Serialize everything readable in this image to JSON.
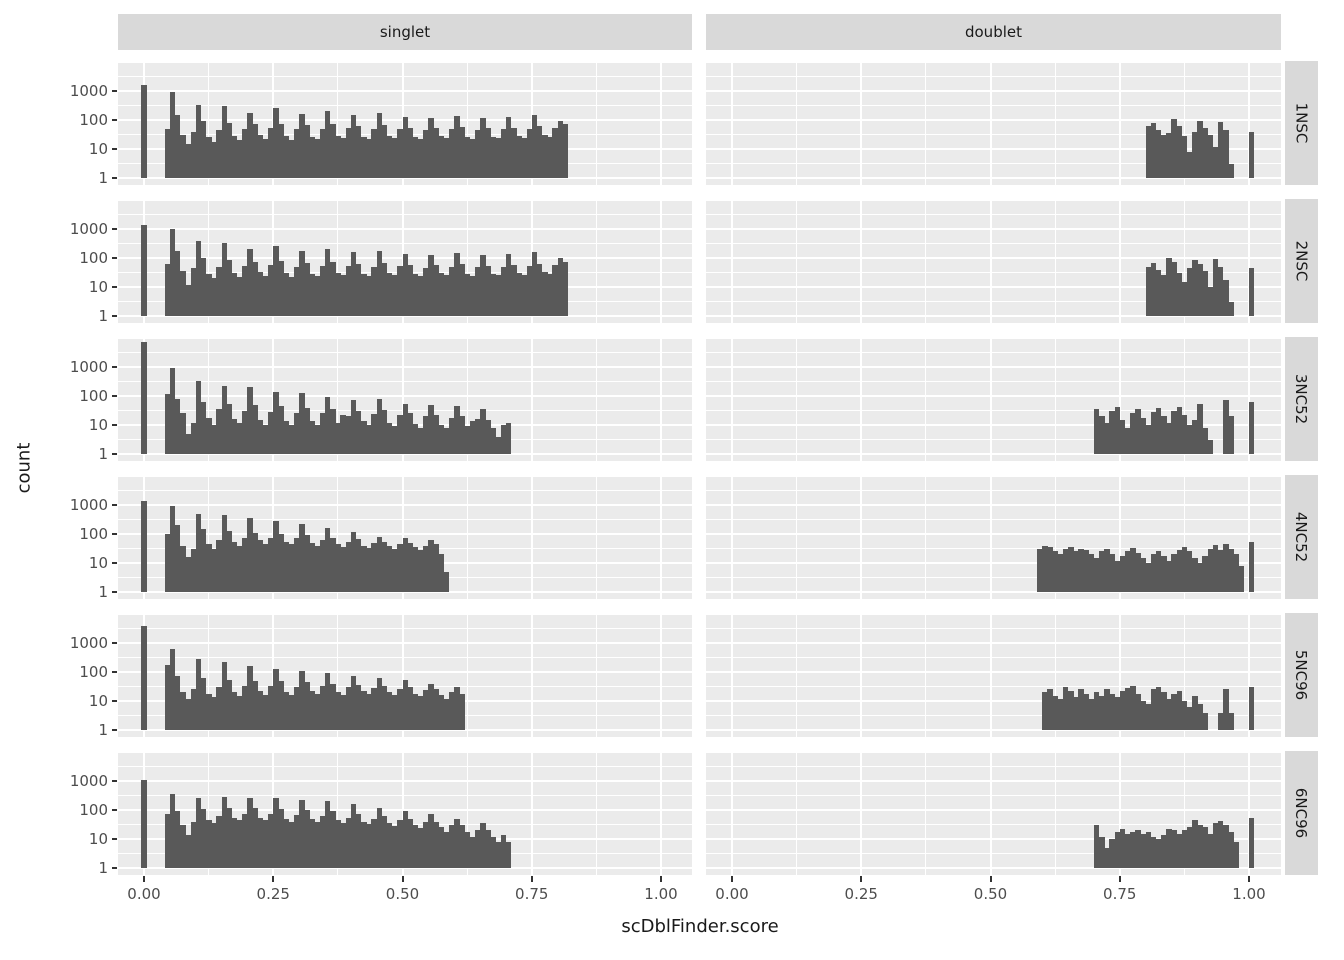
{
  "chart_data": {
    "type": "histogram",
    "title": "",
    "xlabel": "scDblFinder.score",
    "ylabel": "count",
    "x_tick_labels": [
      "0.00",
      "0.25",
      "0.50",
      "0.75",
      "1.00"
    ],
    "x_tick_values": [
      0,
      0.25,
      0.5,
      0.75,
      1.0
    ],
    "y_tick_labels": [
      "1000",
      "100",
      "10",
      "1"
    ],
    "y_tick_values": [
      1000,
      100,
      10,
      1
    ],
    "y_scale": "log10",
    "grid": "on",
    "legend": "none",
    "col_facets": [
      "singlet",
      "doublet"
    ],
    "row_facets": [
      "1NSC",
      "2NSC",
      "3NC52",
      "4NC52",
      "5NC96",
      "6NC96"
    ],
    "binwidth": 0.01,
    "colors": {
      "bar": "#595959",
      "panel_background": "#EBEBEB",
      "strip_background": "#D9D9D9",
      "gridline": "#FFFFFF",
      "tick_text": "#4d4d4d",
      "strip_text": "#1a1a1a",
      "axis_title_text": "#1a1a1a"
    },
    "panels": [
      {
        "row": "1NSC",
        "col": "singlet",
        "zero_spike": 1600,
        "x0": 0.04,
        "counts": [
          50,
          900,
          150,
          30,
          15,
          40,
          320,
          90,
          25,
          18,
          45,
          300,
          80,
          28,
          20,
          50,
          180,
          70,
          30,
          22,
          55,
          250,
          75,
          28,
          20,
          48,
          160,
          65,
          26,
          22,
          50,
          200,
          70,
          28,
          24,
          52,
          150,
          60,
          26,
          22,
          48,
          170,
          65,
          28,
          24,
          50,
          130,
          55,
          26,
          22,
          45,
          120,
          55,
          28,
          24,
          48,
          140,
          58,
          26,
          22,
          46,
          120,
          52,
          26,
          24,
          48,
          130,
          55,
          28,
          24,
          50,
          150,
          60,
          30,
          26,
          55,
          90,
          70
        ]
      },
      {
        "row": "1NSC",
        "col": "doublet",
        "zero_spike": 0,
        "x0": 0.8,
        "counts": [
          60,
          78,
          45,
          30,
          35,
          110,
          62,
          28,
          8,
          40,
          95,
          55,
          30,
          12,
          88,
          45,
          3,
          0,
          0,
          0,
          40
        ]
      },
      {
        "row": "2NSC",
        "col": "singlet",
        "zero_spike": 1400,
        "x0": 0.04,
        "counts": [
          60,
          1000,
          170,
          35,
          12,
          45,
          400,
          100,
          28,
          20,
          50,
          320,
          85,
          30,
          22,
          55,
          200,
          75,
          32,
          24,
          58,
          260,
          80,
          30,
          22,
          50,
          170,
          68,
          28,
          24,
          52,
          210,
          72,
          30,
          26,
          54,
          160,
          62,
          28,
          24,
          50,
          175,
          68,
          30,
          26,
          52,
          140,
          58,
          28,
          24,
          47,
          125,
          57,
          30,
          26,
          50,
          145,
          60,
          28,
          24,
          48,
          125,
          54,
          28,
          26,
          50,
          135,
          57,
          30,
          26,
          52,
          155,
          62,
          32,
          28,
          57,
          100,
          75
        ]
      },
      {
        "row": "2NSC",
        "col": "doublet",
        "zero_spike": 0,
        "x0": 0.8,
        "counts": [
          50,
          65,
          40,
          25,
          100,
          70,
          30,
          15,
          45,
          85,
          60,
          35,
          10,
          95,
          50,
          18,
          3,
          0,
          0,
          0,
          45
        ]
      },
      {
        "row": "3NC52",
        "col": "singlet",
        "zero_spike": 7000,
        "x0": 0.04,
        "counts": [
          120,
          900,
          80,
          25,
          5,
          12,
          330,
          60,
          18,
          10,
          35,
          230,
          55,
          16,
          12,
          30,
          200,
          50,
          15,
          10,
          28,
          140,
          45,
          14,
          10,
          26,
          130,
          40,
          14,
          10,
          25,
          95,
          35,
          12,
          22,
          20,
          70,
          30,
          14,
          10,
          24,
          80,
          32,
          12,
          9,
          22,
          55,
          25,
          11,
          8,
          20,
          48,
          22,
          10,
          8,
          18,
          45,
          20,
          9,
          14,
          16,
          35,
          15,
          8,
          4,
          10,
          12
        ]
      },
      {
        "row": "3NC52",
        "col": "doublet",
        "zero_spike": 0,
        "x0": 0.7,
        "counts": [
          35,
          20,
          12,
          30,
          42,
          15,
          8,
          25,
          35,
          18,
          10,
          28,
          38,
          20,
          12,
          30,
          42,
          22,
          10,
          15,
          55,
          8,
          3,
          0,
          0,
          70,
          20,
          0,
          0,
          0,
          60
        ]
      },
      {
        "row": "4NC52",
        "col": "singlet",
        "zero_spike": 1400,
        "x0": 0.04,
        "counts": [
          100,
          950,
          200,
          40,
          16,
          30,
          500,
          150,
          45,
          30,
          60,
          450,
          130,
          55,
          40,
          70,
          350,
          110,
          60,
          45,
          75,
          280,
          100,
          55,
          45,
          70,
          220,
          90,
          50,
          40,
          60,
          160,
          75,
          45,
          35,
          55,
          120,
          65,
          40,
          32,
          50,
          80,
          55,
          38,
          30,
          45,
          70,
          50,
          35,
          28,
          40,
          60,
          45,
          20,
          5
        ]
      },
      {
        "row": "4NC52",
        "col": "doublet",
        "zero_spike": 0,
        "x0": 0.59,
        "counts": [
          30,
          40,
          35,
          25,
          20,
          30,
          36,
          26,
          30,
          28,
          20,
          15,
          25,
          30,
          20,
          12,
          18,
          25,
          32,
          22,
          15,
          10,
          20,
          26,
          18,
          12,
          20,
          28,
          35,
          25,
          15,
          10,
          18,
          30,
          42,
          28,
          45,
          30,
          20,
          8,
          0,
          55
        ]
      },
      {
        "row": "5NC96",
        "col": "singlet",
        "zero_spike": 4000,
        "x0": 0.04,
        "counts": [
          170,
          600,
          70,
          20,
          12,
          25,
          280,
          60,
          18,
          14,
          30,
          230,
          55,
          20,
          15,
          32,
          160,
          50,
          22,
          16,
          34,
          130,
          48,
          20,
          16,
          30,
          110,
          45,
          22,
          18,
          32,
          90,
          40,
          20,
          16,
          30,
          70,
          35,
          22,
          18,
          28,
          60,
          32,
          20,
          16,
          26,
          55,
          30,
          18,
          15,
          24,
          40,
          25,
          16,
          12,
          20,
          30,
          18
        ]
      },
      {
        "row": "5NC96",
        "col": "doublet",
        "zero_spike": 0,
        "x0": 0.6,
        "counts": [
          20,
          26,
          15,
          12,
          30,
          22,
          14,
          25,
          18,
          12,
          20,
          15,
          25,
          18,
          14,
          22,
          28,
          32,
          18,
          10,
          8,
          25,
          30,
          20,
          12,
          18,
          22,
          10,
          6,
          15,
          8,
          4,
          0,
          0,
          4,
          25,
          4,
          0,
          0,
          0,
          30
        ]
      },
      {
        "row": "6NC96",
        "col": "singlet",
        "zero_spike": 1100,
        "x0": 0.04,
        "counts": [
          70,
          350,
          90,
          30,
          14,
          40,
          250,
          110,
          45,
          35,
          60,
          280,
          120,
          55,
          45,
          70,
          260,
          115,
          55,
          45,
          70,
          250,
          110,
          50,
          40,
          65,
          230,
          100,
          48,
          38,
          60,
          200,
          90,
          45,
          35,
          55,
          160,
          75,
          40,
          32,
          50,
          120,
          60,
          35,
          28,
          45,
          90,
          50,
          30,
          24,
          38,
          70,
          40,
          25,
          18,
          30,
          50,
          30,
          18,
          12,
          20,
          35,
          20,
          12,
          8,
          14,
          8
        ]
      },
      {
        "row": "6NC96",
        "col": "doublet",
        "zero_spike": 0,
        "x0": 0.7,
        "counts": [
          30,
          12,
          5,
          10,
          18,
          22,
          15,
          18,
          20,
          15,
          18,
          12,
          10,
          14,
          22,
          20,
          15,
          20,
          25,
          45,
          30,
          25,
          15,
          35,
          42,
          30,
          18,
          8,
          0,
          0,
          55
        ]
      }
    ]
  }
}
